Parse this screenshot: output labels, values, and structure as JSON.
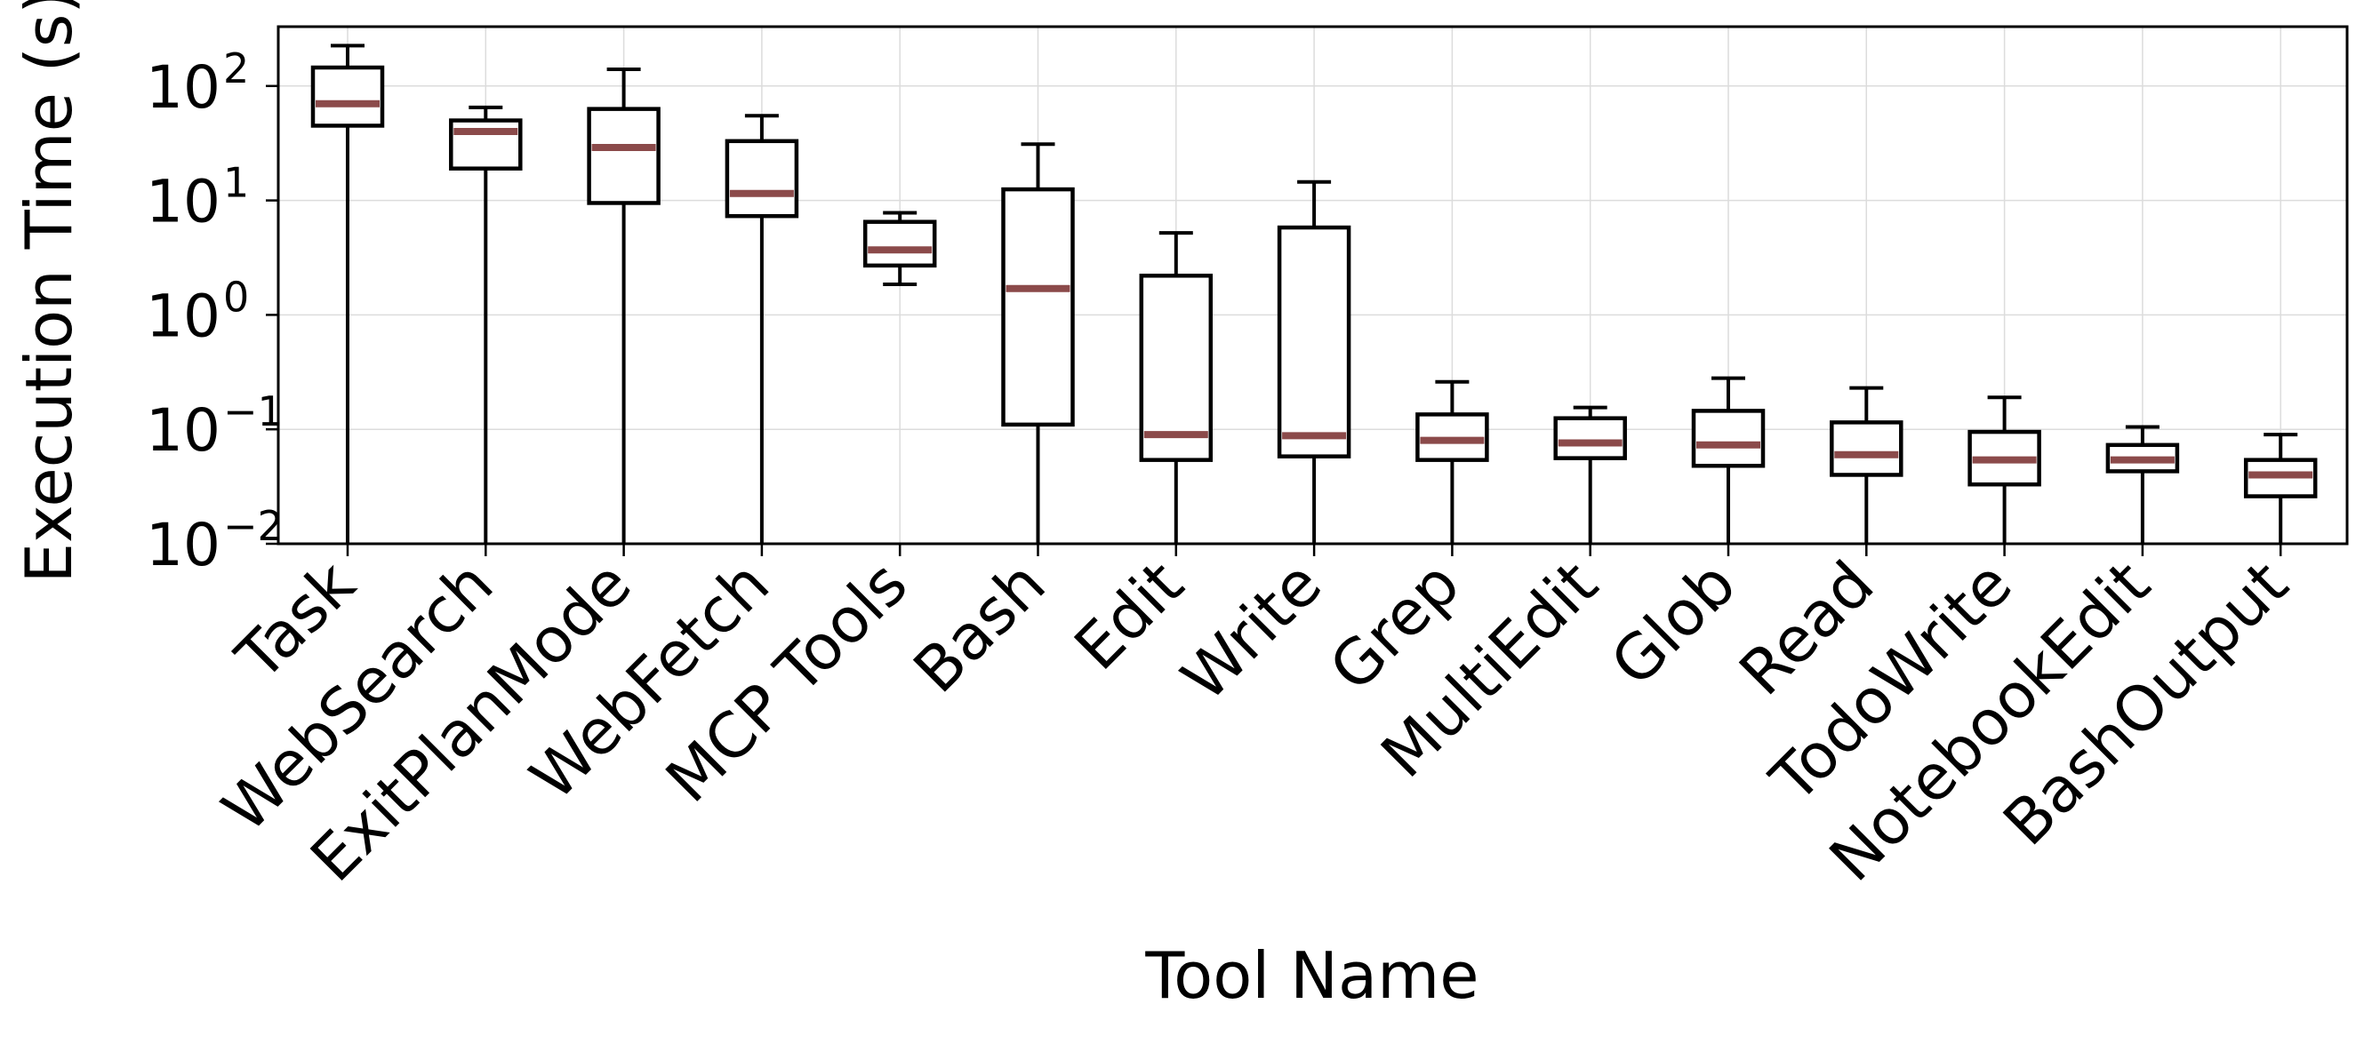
{
  "chart_data": {
    "type": "box",
    "title": "",
    "xlabel": "Tool Name",
    "ylabel": "Execution Time (s)",
    "yscale": "log",
    "ylim": [
      0.01,
      330
    ],
    "yticks": [
      {
        "value": 0.01,
        "base": "10",
        "exp": "−2"
      },
      {
        "value": 0.1,
        "base": "10",
        "exp": "−1"
      },
      {
        "value": 1,
        "base": "10",
        "exp": "0"
      },
      {
        "value": 10,
        "base": "10",
        "exp": "1"
      },
      {
        "value": 100,
        "base": "10",
        "exp": "2"
      }
    ],
    "grid": true,
    "median_color": "#8b4a4a",
    "box_color": "#000000",
    "categories": [
      "Task",
      "WebSearch",
      "ExitPlanMode",
      "WebFetch",
      "MCP Tools",
      "Bash",
      "Edit",
      "Write",
      "Grep",
      "MultiEdit",
      "Glob",
      "Read",
      "TodoWrite",
      "NotebookEdit",
      "BashOutput"
    ],
    "boxes": [
      {
        "name": "Task",
        "whisker_low": 0.01,
        "q1": 45,
        "median": 70,
        "q3": 145,
        "whisker_high": 225
      },
      {
        "name": "WebSearch",
        "whisker_low": 0.01,
        "q1": 19,
        "median": 40,
        "q3": 50,
        "whisker_high": 65
      },
      {
        "name": "ExitPlanMode",
        "whisker_low": 0.01,
        "q1": 9.5,
        "median": 29,
        "q3": 63,
        "whisker_high": 140
      },
      {
        "name": "WebFetch",
        "whisker_low": 0.01,
        "q1": 7.3,
        "median": 11.5,
        "q3": 33,
        "whisker_high": 55
      },
      {
        "name": "MCP Tools",
        "whisker_low": 1.85,
        "q1": 2.7,
        "median": 3.7,
        "q3": 6.5,
        "whisker_high": 7.8
      },
      {
        "name": "Bash",
        "whisker_low": 0.01,
        "q1": 0.11,
        "median": 1.7,
        "q3": 12.5,
        "whisker_high": 31
      },
      {
        "name": "Edit",
        "whisker_low": 0.01,
        "q1": 0.054,
        "median": 0.09,
        "q3": 2.2,
        "whisker_high": 5.2
      },
      {
        "name": "Write",
        "whisker_low": 0.01,
        "q1": 0.058,
        "median": 0.088,
        "q3": 5.8,
        "whisker_high": 14.5
      },
      {
        "name": "Grep",
        "whisker_low": 0.01,
        "q1": 0.054,
        "median": 0.08,
        "q3": 0.135,
        "whisker_high": 0.26
      },
      {
        "name": "MultiEdit",
        "whisker_low": 0.01,
        "q1": 0.056,
        "median": 0.076,
        "q3": 0.125,
        "whisker_high": 0.155
      },
      {
        "name": "Glob",
        "whisker_low": 0.01,
        "q1": 0.048,
        "median": 0.073,
        "q3": 0.145,
        "whisker_high": 0.28
      },
      {
        "name": "Read",
        "whisker_low": 0.01,
        "q1": 0.04,
        "median": 0.06,
        "q3": 0.115,
        "whisker_high": 0.23
      },
      {
        "name": "TodoWrite",
        "whisker_low": 0.01,
        "q1": 0.033,
        "median": 0.054,
        "q3": 0.095,
        "whisker_high": 0.19
      },
      {
        "name": "NotebookEdit",
        "whisker_low": 0.01,
        "q1": 0.043,
        "median": 0.054,
        "q3": 0.073,
        "whisker_high": 0.105
      },
      {
        "name": "BashOutput",
        "whisker_low": 0.01,
        "q1": 0.026,
        "median": 0.04,
        "q3": 0.054,
        "whisker_high": 0.09
      }
    ]
  }
}
